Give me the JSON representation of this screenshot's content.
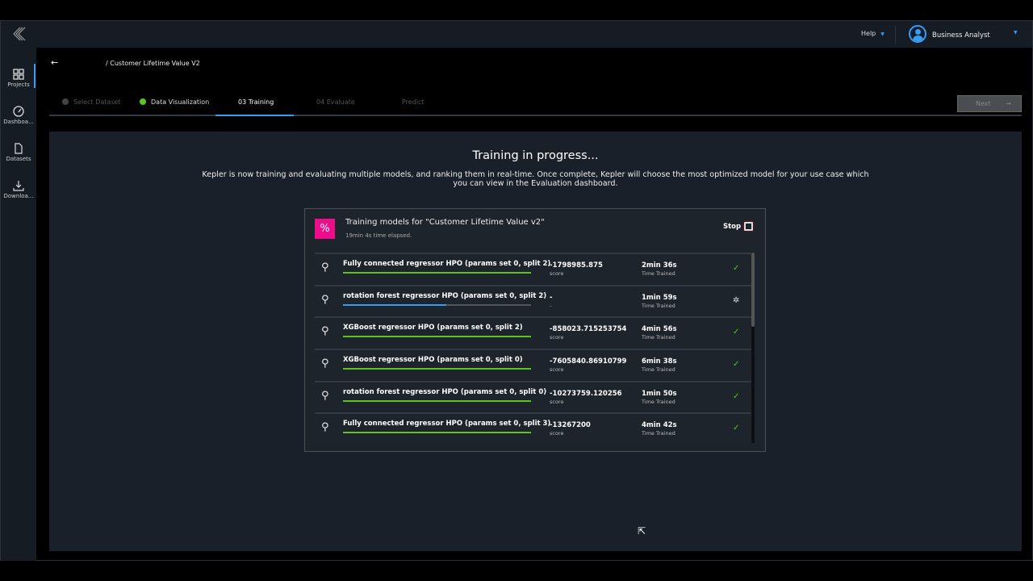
{
  "topbar": {
    "help": "Help",
    "user": "Business Analyst"
  },
  "sidebar": {
    "items": [
      {
        "label": "Projects",
        "icon": "grid-icon"
      },
      {
        "label": "Dashboa...",
        "icon": "gauge-icon"
      },
      {
        "label": "Datasets",
        "icon": "file-icon"
      },
      {
        "label": "Downloa...",
        "icon": "download-icon"
      }
    ]
  },
  "breadcrumb": "/ Customer Lifetime Value V2",
  "steps": [
    {
      "label": "Select Dataset",
      "state": "disabled"
    },
    {
      "label": "Data Visualization",
      "state": "done"
    },
    {
      "label": "03 Training",
      "state": "active"
    },
    {
      "label": "04 Evaluate",
      "state": "pending"
    },
    {
      "label": "Predict",
      "state": "pending"
    }
  ],
  "next_label": "Next",
  "main": {
    "title": "Training in progress...",
    "description": "Kepler is now training and evaluating multiple models, and ranking them in real-time. Once complete, Kepler will choose the most optimized model for your use case which you can view in the Evaluation dashboard."
  },
  "card": {
    "title": "Training models for \"Customer Lifetime Value v2\"",
    "elapsed": "19min 4s time elapsed.",
    "stop": "Stop",
    "rows": [
      {
        "name": "Fully connected regressor HPO (params set 0, split 2)",
        "score": "-1798985.875",
        "score_label": "score",
        "time": "2min 36s",
        "time_label": "Time Trained",
        "progress": 100,
        "status": "complete"
      },
      {
        "name": "rotation forest regressor HPO (params set 0, split 2)",
        "score": "-",
        "score_label": "-",
        "time": "1min 59s",
        "time_label": "Time Trained",
        "progress": 55,
        "status": "running"
      },
      {
        "name": "XGBoost regressor HPO (params set 0, split 2)",
        "score": "-858023.715253754",
        "score_label": "score",
        "time": "4min 56s",
        "time_label": "Time Trained",
        "progress": 100,
        "status": "complete"
      },
      {
        "name": "XGBoost regressor HPO (params set 0, split 0)",
        "score": "-7605840.86910799",
        "score_label": "score",
        "time": "6min 38s",
        "time_label": "Time Trained",
        "progress": 100,
        "status": "complete"
      },
      {
        "name": "rotation forest regressor HPO (params set 0, split 0)",
        "score": "-10273759.120256",
        "score_label": "score",
        "time": "1min 50s",
        "time_label": "Time Trained",
        "progress": 100,
        "status": "complete"
      },
      {
        "name": "Fully connected regressor HPO (params set 0, split 3)",
        "score": "-13267200",
        "score_label": "score",
        "time": "4min 42s",
        "time_label": "Time Trained",
        "progress": 100,
        "status": "complete"
      }
    ]
  },
  "colors": {
    "accent": "#3a9bf0",
    "success": "#5cc41c",
    "brand": "#ec0c8c"
  }
}
